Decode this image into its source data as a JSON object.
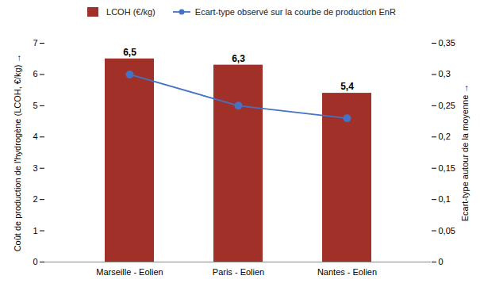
{
  "chart_data": {
    "type": "bar",
    "categories": [
      "Marseille - Eolien",
      "Paris - Eolien",
      "Nantes - Eolien"
    ],
    "series": [
      {
        "name": "LCOH (€/kg)",
        "type": "bar",
        "color": "#A03028",
        "values": [
          6.5,
          6.3,
          5.4
        ],
        "value_labels": [
          "6,5",
          "6,3",
          "5,4"
        ]
      },
      {
        "name": "Ecart-type observé sur la courbe de production EnR",
        "type": "line",
        "axis": "y2",
        "color": "#4472C4",
        "marker": "circle",
        "values": [
          0.3,
          0.25,
          0.23
        ]
      }
    ],
    "ylabel": "Coût de production de l'hydrogène (LCOH, €/kg)",
    "y2label": "Ecart-type autour de la moyenne",
    "ylim": [
      0,
      7
    ],
    "yticks": [
      0,
      1,
      2,
      3,
      4,
      5,
      6,
      7
    ],
    "y2lim": [
      0,
      0.35
    ],
    "y2ticks": [
      0,
      {
        "value": 0.05,
        "label": "0,05"
      },
      {
        "value": 0.1,
        "label": "0,1"
      },
      {
        "value": 0.15,
        "label": "0,15"
      },
      {
        "value": 0.2,
        "label": "0,2"
      },
      {
        "value": 0.25,
        "label": "0,25"
      },
      {
        "value": 0.3,
        "label": "0,3"
      },
      {
        "value": 0.35,
        "label": "0,35"
      }
    ],
    "data_labels": true,
    "legend": "top",
    "grid": false
  }
}
